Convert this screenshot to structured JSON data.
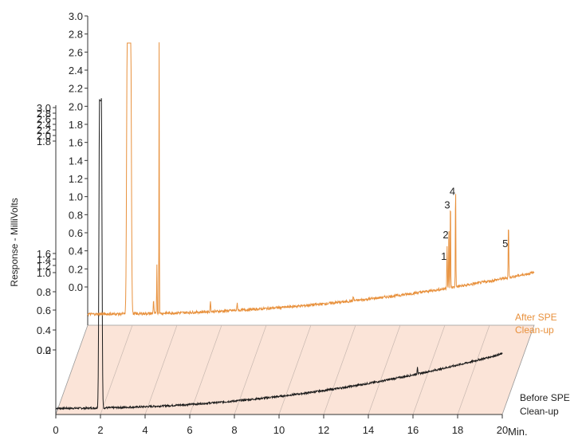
{
  "chart_data": {
    "type": "line",
    "y_axis_label": "Response - MilliVolts",
    "x_axis": {
      "unit_label": "Min.",
      "ticks": [
        "0",
        "2",
        "4",
        "6",
        "8",
        "10",
        "12",
        "14",
        "16",
        "18",
        "20"
      ],
      "range": [
        0,
        20
      ]
    },
    "y_ticks_after": [
      "3.0",
      "2.8",
      "2.6",
      "2.4",
      "2.2",
      "2.0",
      "1.8",
      "1.6",
      "1.4",
      "1.2",
      "1.0",
      "0.8",
      "0.6",
      "0.4",
      "0.2",
      "0.0"
    ],
    "y_ticks_before_upper": [
      "3.0",
      "2.8",
      "2.6",
      "2.4",
      "2.2",
      "2.0",
      "1.8"
    ],
    "y_ticks_before_lower": [
      "1.6",
      "1.4",
      "1.2",
      "1.0",
      "0.8",
      "0.6",
      "0.4",
      "0.2",
      "0.0"
    ],
    "series": [
      {
        "name": "After SPE Clean-up",
        "color": "#E8913D",
        "label_lines": [
          "After SPE",
          "Clean-up"
        ],
        "baseline_start_mV": 0.0,
        "baseline_end_mV": 0.46,
        "peaks": [
          {
            "x": 1.85,
            "height": 3.0,
            "width": 0.08,
            "flat": true
          },
          {
            "x": 3.2,
            "height": 3.0,
            "width": 0.012
          },
          {
            "x": 3.1,
            "height": 0.55,
            "width": 0.015
          },
          {
            "x": 2.95,
            "height": 0.15,
            "width": 0.02
          },
          {
            "x": 5.5,
            "height": 0.12,
            "width": 0.02
          },
          {
            "x": 6.7,
            "height": 0.08,
            "width": 0.02
          },
          {
            "x": 11.9,
            "height": 0.05,
            "width": 0.02
          },
          {
            "x": 16.1,
            "height": 0.48,
            "width": 0.018,
            "label": "1"
          },
          {
            "x": 16.18,
            "height": 0.72,
            "width": 0.015,
            "label": "2"
          },
          {
            "x": 16.25,
            "height": 1.05,
            "width": 0.015,
            "label": "3"
          },
          {
            "x": 16.48,
            "height": 1.2,
            "width": 0.015,
            "label": "4"
          },
          {
            "x": 18.85,
            "height": 0.62,
            "width": 0.018,
            "label": "5"
          }
        ]
      },
      {
        "name": "Before SPE Clean-up",
        "color": "#1a1a1a",
        "label_lines": [
          "Before SPE",
          "Clean-up"
        ],
        "baseline_start_mV": 0.02,
        "baseline_end_mV": 0.38,
        "peaks": [
          {
            "x": 2.0,
            "height": 2.05,
            "width": 0.04,
            "flat": true
          },
          {
            "x": 16.2,
            "height": 0.05,
            "width": 0.02
          }
        ]
      }
    ],
    "peak_labels": [
      "1",
      "2",
      "3",
      "4",
      "5"
    ]
  }
}
